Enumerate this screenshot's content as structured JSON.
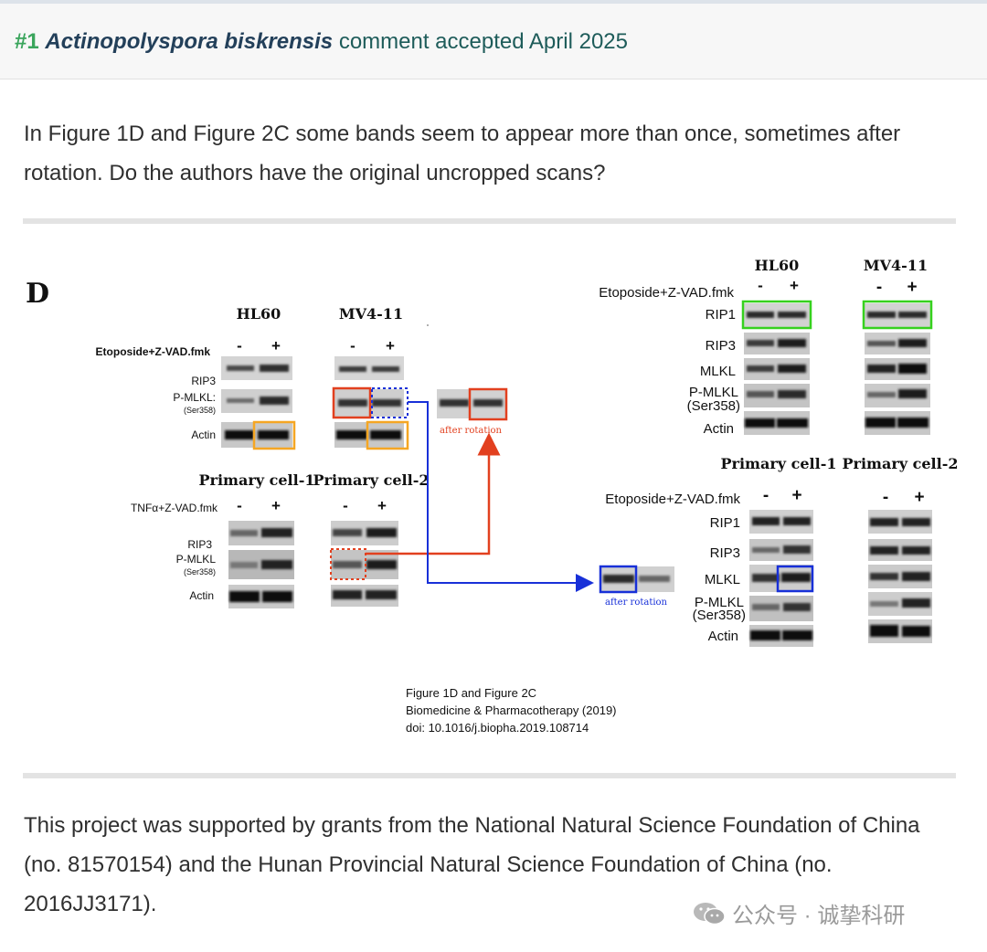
{
  "comment": {
    "number": "#1",
    "species": "Actinopolyspora biskrensis",
    "status": "comment accepted April 2025",
    "text": "In Figure 1D and Figure 2C some bands seem to appear more than once, sometimes after rotation. Do the authors have the original uncropped scans?"
  },
  "figure": {
    "panel_letter": "D",
    "left": {
      "top_cell_lines": [
        "HL60",
        "MV4-11"
      ],
      "treatment_top": "Etoposide+Z-VAD.fmk",
      "treatment_bottom": "TNFα+Z-VAD.fmk",
      "minus": "-",
      "plus": "+",
      "rows": [
        "RIP3",
        "P-MLKL",
        "(Ser358)",
        "Actin"
      ],
      "bottom_cell_lines": [
        "Primary cell-1",
        "Primary cell-2"
      ],
      "pmlkl_label_top": "P-MLKL:"
    },
    "right": {
      "top_cell_lines": [
        "HL60",
        "MV4-11"
      ],
      "bottom_cell_lines": [
        "Primary cell-1",
        "Primary cell-2"
      ],
      "treatment": "Etoposide+Z-VAD.fmk",
      "rows": [
        "RIP1",
        "RIP3",
        "MLKL",
        "P-MLKL",
        "(Ser358)",
        "Actin"
      ]
    },
    "annotation": "after rotation",
    "caption": {
      "line1": "Figure 1D and Figure 2C",
      "line2": "Biomedicine & Pharmacotherapy (2019)",
      "line3": "doi: 10.1016/j.biopha.2019.108714"
    },
    "colors": {
      "orange": "#f5a623",
      "red": "#e2401f",
      "blue": "#1830d8",
      "green": "#36d11e"
    }
  },
  "funding": {
    "text": "This project was supported by grants from the National Natural Science Foundation of China (no. 81570154) and the Hunan Provincial Natural Science Foundation of China (no. 2016JJ3171)."
  },
  "watermark": {
    "icon": "wechat-icon",
    "text": "公众号 · 诚挚科研"
  }
}
